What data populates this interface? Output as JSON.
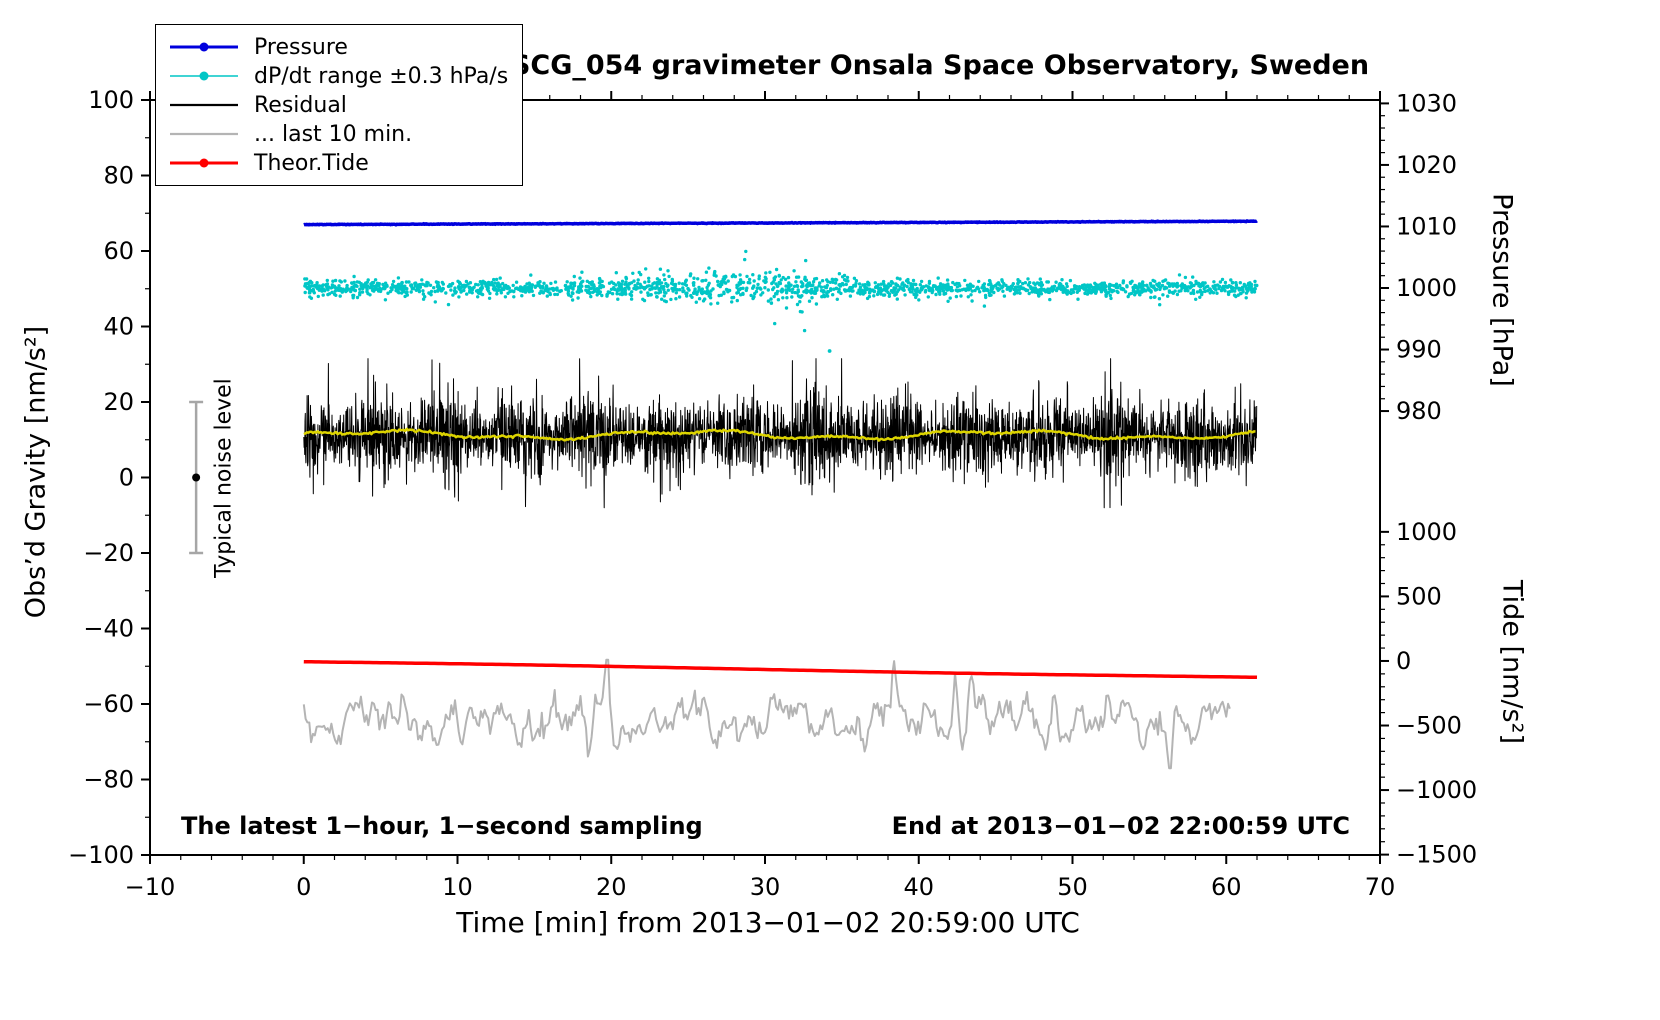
{
  "chart_data": {
    "type": "line+scatter",
    "title": "SCG_054 gravimeter Onsala Space Observatory, Sweden",
    "xlabel": "Time [min] from 2013−01−02 20:59:00 UTC",
    "axes": {
      "x": {
        "lim": [
          -10,
          70
        ],
        "major": 10,
        "minor": 2
      },
      "gravity": {
        "label": "Obs’d Gravity [nm/s²]",
        "lim": [
          -100,
          100
        ],
        "major": 20,
        "minor": 10
      },
      "pressure": {
        "label": "Pressure [hPa]",
        "ticks": [
          980,
          990,
          1000,
          1010,
          1020,
          1030
        ],
        "minor": 2,
        "ref": 1000,
        "per_unit": 1.63,
        "gravity_at_ref": 50.2
      },
      "tide": {
        "label": "Tide [nm/s²]",
        "ticks": [
          -1500,
          -1000,
          -500,
          0,
          500,
          1000
        ],
        "minor": 100,
        "ref": 0,
        "per_unit": 0.0342,
        "gravity_at_ref": -48.6
      }
    },
    "series": [
      {
        "id": "pressure",
        "name": "Pressure",
        "color": "#0000dd",
        "width": 3.5,
        "symbol": "line-dot",
        "x_range": [
          0,
          62
        ],
        "hpa_start": 1010.3,
        "hpa_end": 1010.85,
        "noise": 0.025
      },
      {
        "id": "dpdt",
        "name": "dP/dt range ±0.3 hPa/s",
        "color": "#00c6c6",
        "symbol": "line-dot",
        "legend_line_width": 1.5,
        "x_range": [
          0,
          62
        ],
        "center": 50.2,
        "sigma": 1.0,
        "mid_sigma": 2.1,
        "points": 1800,
        "outlier": {
          "x": 34.2,
          "y": 33.5
        }
      },
      {
        "id": "residual",
        "name": "Residual",
        "color": "#000000",
        "width": 1,
        "symbol": "line",
        "x_range": [
          0,
          62
        ],
        "center": 11,
        "sigma": 5.2,
        "spike_prob": 0.012,
        "clip": [
          -8,
          31.5
        ]
      },
      {
        "id": "residual_smooth",
        "name": "Residual smoothed",
        "color": "#ddd400",
        "width": 2.5,
        "x_range": [
          0,
          62
        ],
        "center": 11.3
      },
      {
        "id": "last10",
        "name": "... last 10 min.",
        "color": "#b4b4b4",
        "width": 2,
        "symbol": "line",
        "x_range": [
          0,
          60.3
        ],
        "center": -64.5,
        "bumps": [
          [
            19.7,
            15
          ],
          [
            38.4,
            13
          ],
          [
            42.4,
            12
          ],
          [
            43.4,
            12
          ],
          [
            30.3,
            9
          ],
          [
            5.6,
            8
          ],
          [
            48.9,
            9
          ],
          [
            56.3,
            -11
          ],
          [
            18.6,
            -10
          ],
          [
            10.2,
            -9
          ]
        ]
      },
      {
        "id": "tide",
        "name": "Theor.Tide",
        "color": "#ff0000",
        "width": 3.5,
        "symbol": "line-dot",
        "x_range": [
          0,
          62
        ],
        "g_start": -48.8,
        "g_end": -53.0
      }
    ],
    "legend_order": [
      0,
      1,
      2,
      4,
      5
    ],
    "noise_annotation": {
      "label": "Typical noise level",
      "x": -7,
      "g_from": -20,
      "g_to": 20,
      "dot_g": 0,
      "color": "#a6a6a6"
    },
    "annotations": {
      "sampling": "The latest 1−hour, 1−second sampling",
      "end_time": "End at 2013−01−02 22:00:59 UTC"
    }
  }
}
